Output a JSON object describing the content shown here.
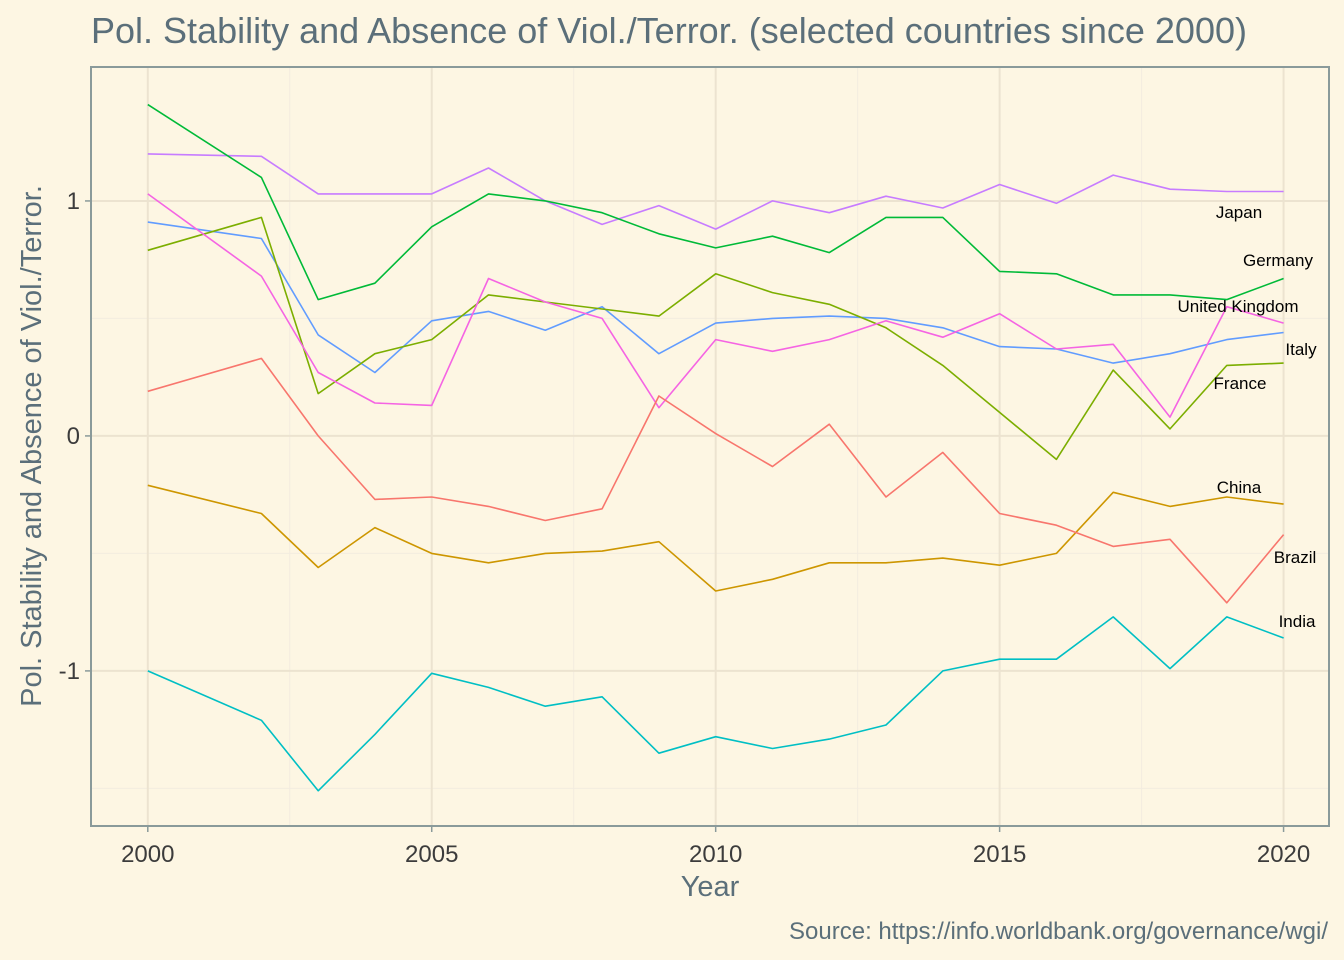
{
  "chart_data": {
    "type": "line",
    "title": "Pol. Stability and Absence of Viol./Terror. (selected countries since 2000)",
    "xlabel": "Year",
    "ylabel": "Pol. Stability and Absence of Viol./Terror.",
    "caption": "Source: https://info.worldbank.org/governance/wgi/",
    "xlim": [
      1999,
      2020.8
    ],
    "ylim": [
      -1.66,
      1.57
    ],
    "x_ticks": [
      2000,
      2005,
      2010,
      2015,
      2020
    ],
    "x_tick_labels": [
      "2000",
      "2005",
      "2010",
      "2015",
      "2020"
    ],
    "y_ticks": [
      -1,
      0,
      1
    ],
    "y_tick_labels": [
      "-1",
      "0",
      "1"
    ],
    "grid": true,
    "legend": "direct labels at line ends",
    "x": [
      2000,
      2002,
      2003,
      2004,
      2005,
      2006,
      2007,
      2008,
      2009,
      2010,
      2011,
      2012,
      2013,
      2014,
      2015,
      2016,
      2017,
      2018,
      2019,
      2020
    ],
    "series": [
      {
        "name": "Japan",
        "color": "#c77cff",
        "values": [
          1.2,
          1.19,
          1.03,
          1.03,
          1.03,
          1.14,
          1.0,
          0.9,
          0.98,
          0.88,
          1.0,
          0.95,
          1.02,
          0.97,
          1.07,
          0.99,
          1.11,
          1.05,
          1.04,
          1.04
        ]
      },
      {
        "name": "Germany",
        "color": "#00ba38",
        "values": [
          1.41,
          1.1,
          0.58,
          0.65,
          0.89,
          1.03,
          1.0,
          0.95,
          0.86,
          0.8,
          0.85,
          0.78,
          0.93,
          0.93,
          0.7,
          0.69,
          0.6,
          0.6,
          0.58,
          0.67
        ]
      },
      {
        "name": "United Kingdom",
        "color": "#619cff",
        "values": [
          0.91,
          0.84,
          0.43,
          0.27,
          0.49,
          0.53,
          0.45,
          0.55,
          0.35,
          0.48,
          0.5,
          0.51,
          0.5,
          0.46,
          0.38,
          0.37,
          0.31,
          0.35,
          0.41,
          0.44
        ]
      },
      {
        "name": "Italy",
        "color": "#7cae00",
        "values": [
          0.79,
          0.93,
          0.18,
          0.35,
          0.41,
          0.6,
          0.57,
          0.54,
          0.51,
          0.69,
          0.61,
          0.56,
          0.46,
          0.3,
          0.1,
          -0.1,
          0.28,
          0.03,
          0.3,
          0.31
        ]
      },
      {
        "name": "France",
        "color": "#f564e3",
        "values": [
          1.03,
          0.68,
          0.27,
          0.14,
          0.13,
          0.67,
          0.57,
          0.5,
          0.12,
          0.41,
          0.36,
          0.41,
          0.49,
          0.42,
          0.52,
          0.37,
          0.39,
          0.08,
          0.55,
          0.48
        ]
      },
      {
        "name": "China",
        "color": "#cd9600",
        "values": [
          -0.21,
          -0.33,
          -0.56,
          -0.39,
          -0.5,
          -0.54,
          -0.5,
          -0.49,
          -0.45,
          -0.66,
          -0.61,
          -0.54,
          -0.54,
          -0.52,
          -0.55,
          -0.5,
          -0.24,
          -0.3,
          -0.26,
          -0.29
        ]
      },
      {
        "name": "Brazil",
        "color": "#f8766d",
        "values": [
          0.19,
          0.33,
          0.0,
          -0.27,
          -0.26,
          -0.3,
          -0.36,
          -0.31,
          0.17,
          0.01,
          -0.13,
          0.05,
          -0.26,
          -0.07,
          -0.33,
          -0.38,
          -0.47,
          -0.44,
          -0.71,
          -0.42
        ]
      },
      {
        "name": "India",
        "color": "#00bfc4",
        "values": [
          -1.0,
          -1.21,
          -1.51,
          -1.27,
          -1.01,
          -1.07,
          -1.15,
          -1.11,
          -1.35,
          -1.28,
          -1.33,
          -1.29,
          -1.23,
          -1.0,
          -0.95,
          -0.95,
          -0.77,
          -0.99,
          -0.77,
          -0.86
        ]
      }
    ]
  }
}
